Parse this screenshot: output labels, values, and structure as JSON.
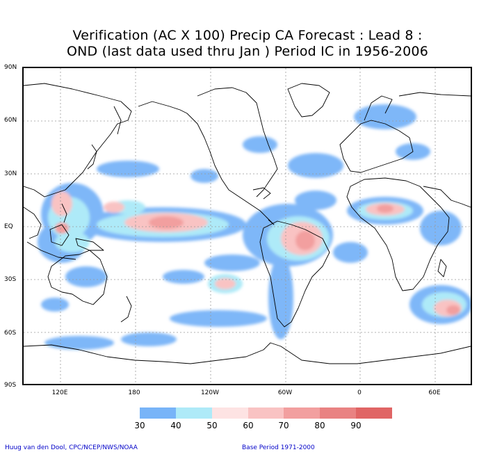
{
  "title": {
    "line1": "Verification (AC X 100) Precip CA Forecast : Lead 8 :",
    "line2": "OND (last data used thru Jan ) Period IC in 1956-2006"
  },
  "axes": {
    "lat_labels": [
      "90N",
      "60N",
      "30N",
      "EQ",
      "30S",
      "60S",
      "90S"
    ],
    "lon_labels": [
      "120E",
      "180",
      "120W",
      "60W",
      "0",
      "60E"
    ]
  },
  "legend": {
    "ticks": [
      "30",
      "40",
      "50",
      "60",
      "70",
      "80",
      "90"
    ],
    "colors": [
      "#78b4f8",
      "#aeeaf8",
      "#fde3e3",
      "#f9c3c3",
      "#f29f9f",
      "#e98282",
      "#e06565"
    ]
  },
  "credits": {
    "left": "Huug van den Dool, CPC/NCEP/NWS/NOAA",
    "right": "Base Period 1971-2000"
  },
  "map": {
    "lon_range": [
      90,
      450
    ],
    "lat_range": [
      -90,
      90
    ],
    "grid": true
  }
}
